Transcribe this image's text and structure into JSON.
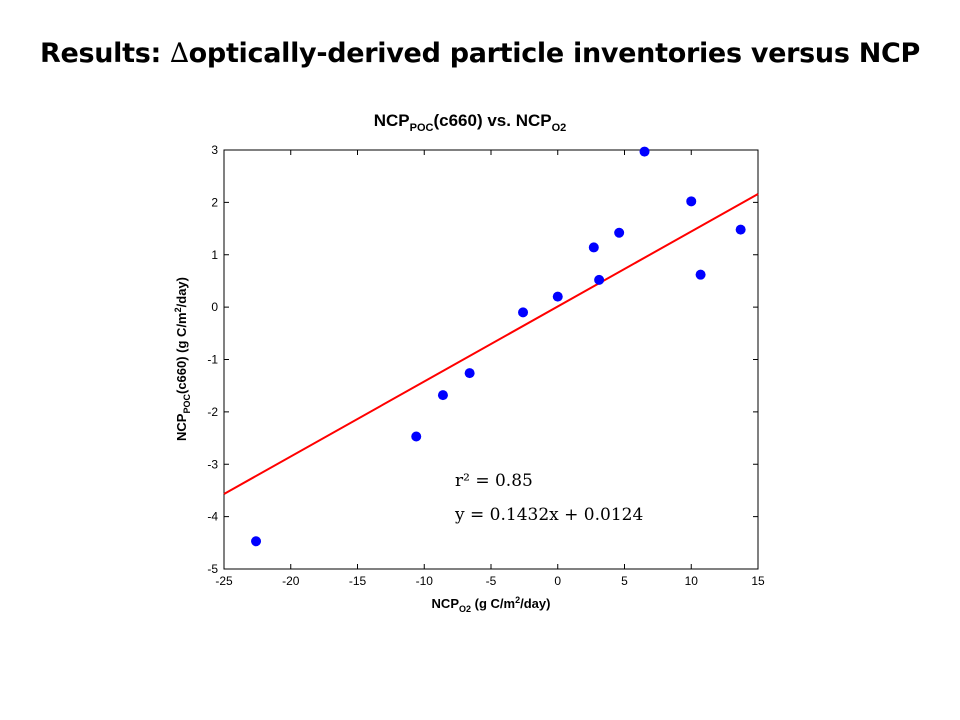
{
  "slide": {
    "title_prefix": "Results: ",
    "title_delta": "∆",
    "title_rest": "optically-derived particle inventories versus NCP"
  },
  "chart_data": {
    "type": "scatter",
    "title": {
      "main": "NCP",
      "sub1": "POC",
      "mid": "(c660) vs. NCP",
      "sub2": "O2"
    },
    "xlabel": {
      "main": "NCP",
      "sub": "O2",
      "rest": " (g C/m",
      "sup": "2",
      "end": "/day)"
    },
    "ylabel": {
      "main": "NCP",
      "sub": "POC",
      "rest": "(c660) (g C/m",
      "sup": "2",
      "end": "/day)"
    },
    "xlim": [
      -25,
      15
    ],
    "ylim": [
      -5,
      3
    ],
    "xticks": [
      -25,
      -20,
      -15,
      -10,
      -5,
      0,
      5,
      10,
      15
    ],
    "yticks": [
      3,
      2,
      1,
      0,
      -1,
      -2,
      -3,
      -4,
      -5
    ],
    "grid": false,
    "points": [
      {
        "x": -22.6,
        "y": -4.47
      },
      {
        "x": -10.6,
        "y": -2.47
      },
      {
        "x": -8.6,
        "y": -1.68
      },
      {
        "x": -6.6,
        "y": -1.26
      },
      {
        "x": -2.6,
        "y": -0.1
      },
      {
        "x": 0.0,
        "y": 0.2
      },
      {
        "x": 2.7,
        "y": 1.14
      },
      {
        "x": 3.1,
        "y": 0.52
      },
      {
        "x": 4.6,
        "y": 1.42
      },
      {
        "x": 6.5,
        "y": 2.97
      },
      {
        "x": 10.0,
        "y": 2.02
      },
      {
        "x": 10.7,
        "y": 0.62
      },
      {
        "x": 13.7,
        "y": 1.48
      }
    ],
    "fit": {
      "slope": 0.1432,
      "intercept": 0.0124,
      "x_range": [
        -25,
        15
      ]
    },
    "point_color": "#0000ff",
    "fit_color": "#ff0000",
    "annotations": {
      "r2": "r² = 0.85",
      "equation": "y = 0.1432x + 0.0124"
    }
  }
}
